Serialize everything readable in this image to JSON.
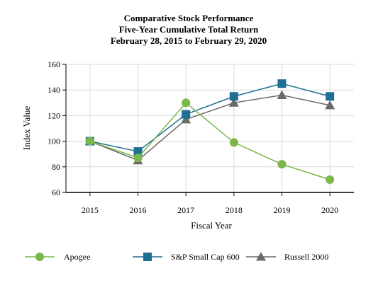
{
  "chart_data": {
    "type": "line",
    "title": [
      "Comparative Stock Performance",
      "Five-Year Cumulative Total Return",
      "February 28, 2015 to February 29, 2020"
    ],
    "xlabel": "Fiscal Year",
    "ylabel": "Index Value",
    "categories": [
      "2015",
      "2016",
      "2017",
      "2018",
      "2019",
      "2020"
    ],
    "ylim": [
      60,
      160
    ],
    "yticks": [
      60,
      80,
      100,
      120,
      140,
      160
    ],
    "grid": true,
    "legend_position": "bottom",
    "series": [
      {
        "name": "Apogee",
        "values": [
          100,
          87,
          130,
          99,
          82,
          70
        ],
        "color": "#7ab648",
        "marker": "circle"
      },
      {
        "name": "S&P Small Cap 600",
        "values": [
          100,
          92,
          121,
          135,
          145,
          135
        ],
        "color": "#1f6f95",
        "marker": "square"
      },
      {
        "name": "Russell 2000",
        "values": [
          100,
          85,
          117,
          130,
          136,
          128
        ],
        "color": "#6a6a6a",
        "marker": "triangle"
      }
    ]
  }
}
